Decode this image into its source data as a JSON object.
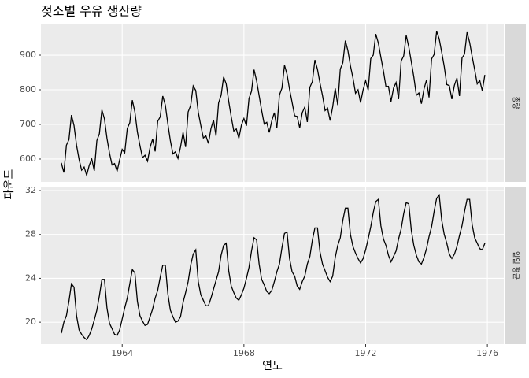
{
  "chart_data": {
    "type": "line",
    "title": "젖소별 우유 생산량",
    "x_label": "연도",
    "y_label": "파운드",
    "color": "#000000",
    "grid": true,
    "xlim": [
      1961.33,
      1976.54
    ],
    "xticks": [
      1964,
      1968,
      1972,
      1976
    ],
    "x": [
      1962,
      1962.083,
      1962.167,
      1962.25,
      1962.333,
      1962.417,
      1962.5,
      1962.583,
      1962.667,
      1962.75,
      1962.833,
      1962.917,
      1963,
      1963.083,
      1963.167,
      1963.25,
      1963.333,
      1963.417,
      1963.5,
      1963.583,
      1963.667,
      1963.75,
      1963.833,
      1963.917,
      1964,
      1964.083,
      1964.167,
      1964.25,
      1964.333,
      1964.417,
      1964.5,
      1964.583,
      1964.667,
      1964.75,
      1964.833,
      1964.917,
      1965,
      1965.083,
      1965.167,
      1965.25,
      1965.333,
      1965.417,
      1965.5,
      1965.583,
      1965.667,
      1965.75,
      1965.833,
      1965.917,
      1966,
      1966.083,
      1966.167,
      1966.25,
      1966.333,
      1966.417,
      1966.5,
      1966.583,
      1966.667,
      1966.75,
      1966.833,
      1966.917,
      1967,
      1967.083,
      1967.167,
      1967.25,
      1967.333,
      1967.417,
      1967.5,
      1967.583,
      1967.667,
      1967.75,
      1967.833,
      1967.917,
      1968,
      1968.083,
      1968.167,
      1968.25,
      1968.333,
      1968.417,
      1968.5,
      1968.583,
      1968.667,
      1968.75,
      1968.833,
      1968.917,
      1969,
      1969.083,
      1969.167,
      1969.25,
      1969.333,
      1969.417,
      1969.5,
      1969.583,
      1969.667,
      1969.75,
      1969.833,
      1969.917,
      1970,
      1970.083,
      1970.167,
      1970.25,
      1970.333,
      1970.417,
      1970.5,
      1970.583,
      1970.667,
      1970.75,
      1970.833,
      1970.917,
      1971,
      1971.083,
      1971.167,
      1971.25,
      1971.333,
      1971.417,
      1971.5,
      1971.583,
      1971.667,
      1971.75,
      1971.833,
      1971.917,
      1972,
      1972.083,
      1972.167,
      1972.25,
      1972.333,
      1972.417,
      1972.5,
      1972.583,
      1972.667,
      1972.75,
      1972.833,
      1972.917,
      1973,
      1973.083,
      1973.167,
      1973.25,
      1973.333,
      1973.417,
      1973.5,
      1973.583,
      1973.667,
      1973.75,
      1973.833,
      1973.917,
      1974,
      1974.083,
      1974.167,
      1974.25,
      1974.333,
      1974.417,
      1974.5,
      1974.583,
      1974.667,
      1974.75,
      1974.833,
      1974.917,
      1975,
      1975.083,
      1975.167,
      1975.25,
      1975.333,
      1975.417,
      1975.5,
      1975.583,
      1975.667,
      1975.75,
      1975.833,
      1975.917
    ],
    "panels": [
      {
        "strip": "총량",
        "ylim": [
          534,
          991
        ],
        "yticks": [
          600,
          700,
          800,
          900
        ],
        "values": [
          589,
          561,
          640,
          656,
          727,
          697,
          640,
          599,
          568,
          577,
          553,
          582,
          600,
          566,
          653,
          673,
          742,
          716,
          660,
          617,
          583,
          587,
          565,
          598,
          628,
          618,
          688,
          705,
          770,
          736,
          678,
          639,
          604,
          611,
          594,
          634,
          658,
          622,
          709,
          722,
          782,
          756,
          702,
          653,
          615,
          621,
          602,
          635,
          677,
          635,
          736,
          755,
          811,
          798,
          735,
          697,
          661,
          667,
          645,
          688,
          713,
          667,
          762,
          784,
          837,
          817,
          767,
          722,
          681,
          687,
          660,
          698,
          717,
          696,
          775,
          796,
          858,
          826,
          783,
          740,
          701,
          706,
          677,
          711,
          734,
          690,
          785,
          805,
          871,
          845,
          801,
          764,
          725,
          723,
          690,
          734,
          750,
          707,
          807,
          824,
          886,
          859,
          819,
          783,
          740,
          747,
          711,
          751,
          804,
          756,
          860,
          878,
          942,
          913,
          869,
          834,
          790,
          800,
          763,
          800,
          826,
          799,
          890,
          900,
          961,
          935,
          894,
          855,
          809,
          810,
          766,
          805,
          821,
          773,
          883,
          898,
          957,
          924,
          881,
          837,
          784,
          791,
          760,
          802,
          828,
          778,
          889,
          902,
          969,
          947,
          908,
          867,
          815,
          812,
          773,
          813,
          834,
          782,
          892,
          903,
          966,
          937,
          896,
          858,
          817,
          827,
          797,
          843
        ]
      },
      {
        "strip": "일일 평균",
        "ylim": [
          18,
          32.36
        ],
        "yticks": [
          20,
          24,
          28,
          32
        ],
        "values": [
          19.0,
          20.0,
          20.6,
          21.9,
          23.5,
          23.2,
          20.6,
          19.3,
          18.9,
          18.6,
          18.4,
          18.8,
          19.4,
          20.2,
          21.1,
          22.4,
          23.9,
          23.9,
          21.3,
          19.9,
          19.4,
          18.9,
          18.8,
          19.3,
          20.3,
          21.3,
          22.2,
          23.5,
          24.8,
          24.5,
          21.9,
          20.6,
          20.1,
          19.7,
          19.8,
          20.5,
          21.2,
          22.2,
          22.9,
          24.1,
          25.2,
          25.2,
          22.6,
          21.1,
          20.5,
          20.0,
          20.1,
          20.5,
          21.8,
          22.7,
          23.7,
          25.2,
          26.2,
          26.6,
          23.7,
          22.5,
          22.0,
          21.5,
          21.5,
          22.2,
          23.0,
          23.8,
          24.6,
          26.1,
          27.0,
          27.2,
          24.7,
          23.3,
          22.7,
          22.2,
          22.0,
          22.5,
          23.1,
          24.0,
          25.0,
          26.5,
          27.7,
          27.5,
          25.3,
          23.9,
          23.4,
          22.8,
          22.6,
          22.9,
          23.7,
          24.6,
          25.3,
          26.8,
          28.1,
          28.2,
          25.8,
          24.6,
          24.2,
          23.3,
          23.0,
          23.7,
          24.2,
          25.3,
          26.0,
          27.5,
          28.6,
          28.6,
          26.4,
          25.3,
          24.7,
          24.1,
          23.7,
          24.2,
          25.9,
          27.0,
          27.7,
          29.3,
          30.4,
          30.4,
          28.0,
          26.9,
          26.3,
          25.8,
          25.4,
          25.8,
          26.6,
          27.6,
          28.7,
          30.0,
          31.0,
          31.2,
          28.8,
          27.6,
          27.0,
          26.1,
          25.5,
          26.0,
          26.5,
          27.6,
          28.5,
          29.9,
          30.9,
          30.8,
          28.4,
          27.0,
          26.1,
          25.5,
          25.3,
          25.9,
          26.7,
          27.8,
          28.7,
          30.1,
          31.3,
          31.6,
          29.3,
          28.0,
          27.2,
          26.2,
          25.8,
          26.2,
          26.9,
          27.9,
          28.8,
          30.1,
          31.2,
          31.2,
          28.9,
          27.7,
          27.2,
          26.7,
          26.6,
          27.2
        ]
      }
    ]
  }
}
